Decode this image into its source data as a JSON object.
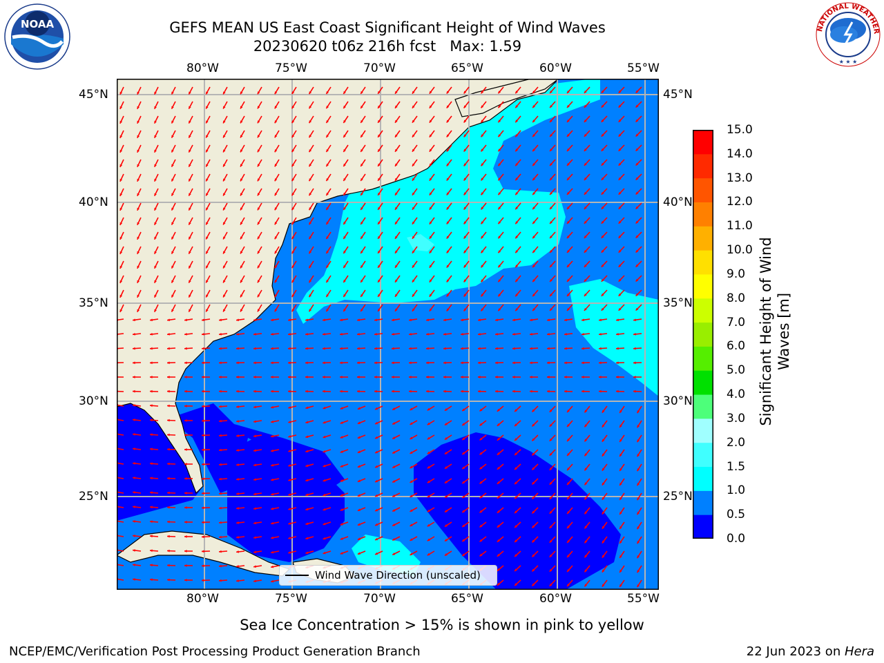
{
  "header": {
    "title_line1": "GEFS MEAN US East Coast Significant Height of Wind Waves",
    "title_line2": "20230620 t06z 216h fcst   Max: 1.59"
  },
  "logos": {
    "left_icon": "noaa-logo",
    "left_text": "NOAA",
    "left_ring_text": "NATIONAL OCEANIC AND ATMOSPHERIC ADMINISTRATION · U.S. DEPARTMENT OF COMMERCE",
    "right_icon": "nws-logo",
    "right_ring_text": "NATIONAL WEATHER SERVICE"
  },
  "map": {
    "lon_labels": [
      "80°W",
      "75°W",
      "70°W",
      "65°W",
      "60°W",
      "55°W"
    ],
    "lat_labels": [
      "45°N",
      "40°N",
      "35°N",
      "30°N",
      "25°N"
    ],
    "lon_range": [
      -85,
      -54.2
    ],
    "lat_range": [
      20,
      46
    ],
    "grid": true,
    "land_color": "#efedda",
    "arrow_color": "#ff0000",
    "legend_label": "Wind Wave Direction (unscaled)"
  },
  "colorbar": {
    "label": "Significant Height of Wind Waves [m]",
    "ticks": [
      "0.0",
      "0.5",
      "1.0",
      "1.5",
      "2.0",
      "3.0",
      "4.0",
      "5.0",
      "6.0",
      "7.0",
      "8.0",
      "9.0",
      "10.0",
      "11.0",
      "12.0",
      "13.0",
      "14.0",
      "15.0"
    ],
    "colors": [
      "#0000ff",
      "#0080ff",
      "#00ffff",
      "#40ffff",
      "#a0ffff",
      "#4dff7a",
      "#00e000",
      "#55ee00",
      "#99ee00",
      "#ccff00",
      "#ffff00",
      "#ffe000",
      "#ffb000",
      "#ff8000",
      "#ff5500",
      "#ff2a00",
      "#ff0000"
    ]
  },
  "chart_data": {
    "type": "heatmap",
    "title": "GEFS MEAN US East Coast Significant Height of Wind Waves",
    "subtitle": "20230620 t06z 216h fcst   Max: 1.59",
    "variable": "Significant Height of Wind Waves [m]",
    "max": 1.59,
    "xlim": [
      -85,
      -54.2
    ],
    "ylim": [
      20,
      46
    ],
    "x_ticks": [
      "80°W",
      "75°W",
      "70°W",
      "65°W",
      "60°W",
      "55°W"
    ],
    "y_ticks": [
      "45°N",
      "40°N",
      "35°N",
      "30°N",
      "25°N"
    ],
    "grid": true,
    "legend": "bottom-center",
    "field_bins": [
      "0.0-0.5 m",
      "0.5-1.0 m",
      "1.0-1.5 m",
      "1.5-2.0 m"
    ]
  },
  "footer": {
    "note": "Sea Ice Concentration > 15% is shown in pink to yellow",
    "credit": "NCEP/EMC/Verification Post Processing Product Generation Branch",
    "date": "22 Jun 2023 on ",
    "machine": "Hera"
  }
}
